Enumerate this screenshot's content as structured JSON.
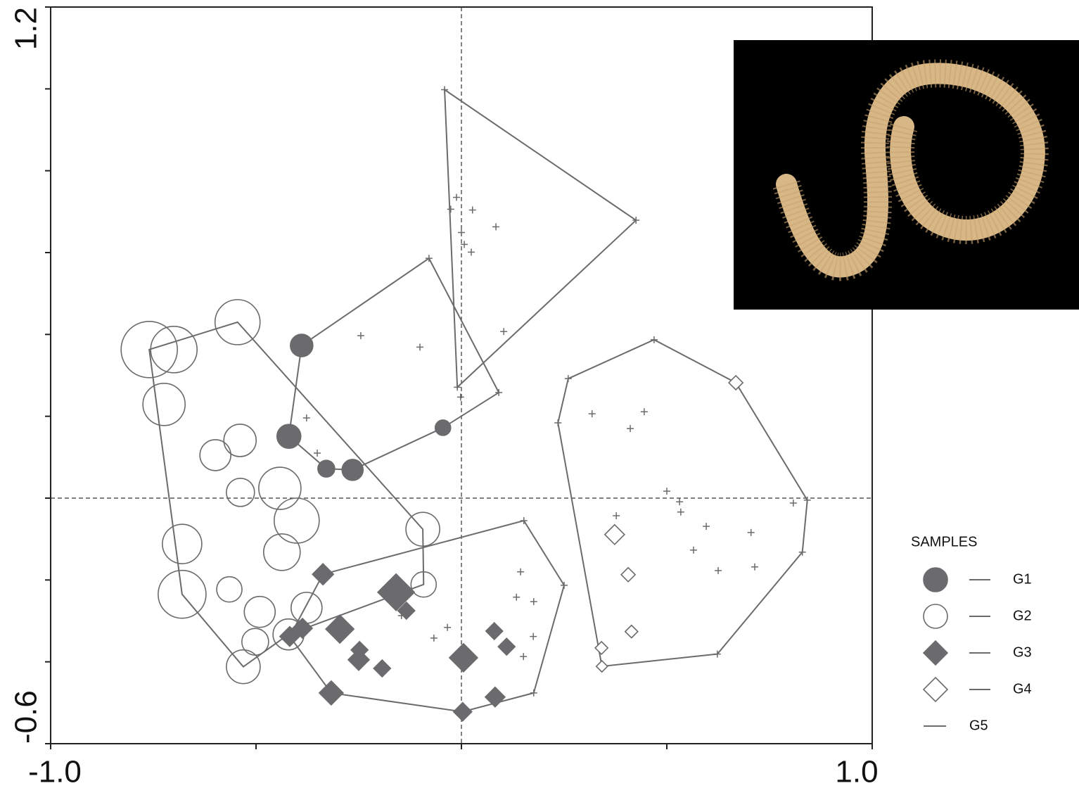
{
  "chart_data": {
    "type": "scatter",
    "xlim": [
      -1,
      1
    ],
    "ylim": [
      -0.6,
      1.2
    ],
    "xticks": [
      {
        "value": -1,
        "label": "-1.0"
      },
      {
        "value": -0.5,
        "label": null
      },
      {
        "value": 0,
        "label": null
      },
      {
        "value": 0.5,
        "label": null
      },
      {
        "value": 1,
        "label": "1.0"
      }
    ],
    "yticks": [
      -0.6,
      {
        "value": -0.4,
        "label": null
      },
      {
        "value": -0.2,
        "label": null
      },
      {
        "value": 0,
        "label": null
      },
      {
        "value": 0.2,
        "label": null
      },
      {
        "value": 0.4,
        "label": null
      },
      {
        "value": 0.6,
        "label": null
      },
      {
        "value": 0.8,
        "label": null
      },
      {
        "value": 1.0,
        "label": null
      },
      1.2
    ],
    "crosshair": {
      "x": 0,
      "y": 0
    },
    "legend_title": "SAMPLES",
    "series": [
      {
        "name": "G1",
        "marker": "circle",
        "filled": true,
        "color": "#6b6b6e",
        "x": [
          -0.389,
          -0.42,
          -0.045,
          -0.329,
          -0.265
        ],
        "y": [
          0.373,
          0.151,
          0.172,
          0.072,
          0.069
        ],
        "sizes": [
          16,
          17,
          11,
          12,
          15
        ]
      },
      {
        "name": "G2",
        "marker": "circle",
        "filled": false,
        "color": "#6b6b6e",
        "x": [
          -0.76,
          -0.7,
          -0.545,
          -0.724,
          -0.539,
          -0.599,
          -0.538,
          -0.442,
          -0.401,
          -0.68,
          -0.437,
          -0.094,
          -0.68,
          -0.565,
          -0.491,
          -0.377,
          -0.092,
          -0.502,
          -0.421,
          -0.531
        ],
        "y": [
          0.363,
          0.363,
          0.43,
          0.229,
          0.141,
          0.105,
          0.014,
          0.024,
          -0.055,
          -0.112,
          -0.132,
          -0.076,
          -0.235,
          -0.223,
          -0.278,
          -0.268,
          -0.211,
          -0.351,
          -0.333,
          -0.412
        ],
        "sizes": [
          40,
          33,
          32,
          30,
          23,
          22,
          20,
          30,
          32,
          28,
          26,
          24,
          34,
          18,
          22,
          22,
          18,
          19,
          22,
          24
        ]
      },
      {
        "name": "G3",
        "marker": "diamond",
        "filled": true,
        "color": "#6b6b6e",
        "x": [
          -0.337,
          -0.159,
          -0.134,
          -0.296,
          -0.387,
          -0.418,
          -0.248,
          -0.25,
          -0.193,
          0.005,
          0.08,
          0.11,
          -0.317,
          0.082,
          0.003
        ],
        "y": [
          -0.186,
          -0.23,
          -0.275,
          -0.32,
          -0.318,
          -0.338,
          -0.371,
          -0.395,
          -0.416,
          -0.39,
          -0.325,
          -0.363,
          -0.476,
          -0.486,
          -0.522
        ],
        "sizes": [
          15,
          26,
          12,
          20,
          14,
          14,
          12,
          15,
          12,
          20,
          12,
          12,
          17,
          14,
          13
        ]
      },
      {
        "name": "G4",
        "marker": "diamond",
        "filled": false,
        "color": "#6b6b6e",
        "x": [
          0.668,
          0.373,
          0.406,
          0.414,
          0.341,
          0.342
        ],
        "y": [
          0.282,
          -0.089,
          -0.187,
          -0.326,
          -0.366,
          -0.411
        ],
        "sizes": [
          10,
          14,
          10,
          9,
          9,
          8
        ]
      },
      {
        "marker": "plus",
        "color": "#6b6b6e",
        "x": [
          -0.041,
          0.425,
          -0.012,
          -0.026,
          0.027,
          0.084,
          0,
          0.007,
          0.024,
          -0.079,
          0.103,
          -0.245,
          -0.101,
          -0.01,
          0.091,
          -0.002,
          -0.377,
          -0.351,
          0.469,
          0.26,
          0.318,
          0.445,
          0.411,
          0.235,
          0.5,
          0.531,
          0.534,
          0.842,
          0.808,
          0.377,
          0.596,
          0.705,
          0.565,
          0.83,
          0.714,
          0.625,
          0.152,
          0.25,
          0.144,
          0.134,
          0.176,
          -0.146,
          -0.034,
          -0.067,
          0.175,
          0.151,
          0.176,
          0.623
        ],
        "y": [
          0.998,
          0.679,
          0.735,
          0.706,
          0.704,
          0.663,
          0.649,
          0.62,
          0.601,
          0.586,
          0.407,
          0.397,
          0.369,
          0.271,
          0.258,
          0.247,
          0.196,
          0.11,
          0.387,
          0.292,
          0.206,
          0.211,
          0.17,
          0.184,
          0.017,
          -0.009,
          -0.034,
          -0.005,
          -0.012,
          -0.043,
          -0.069,
          -0.084,
          -0.127,
          -0.132,
          -0.168,
          -0.177,
          -0.055,
          -0.213,
          -0.18,
          -0.242,
          -0.253,
          -0.287,
          -0.316,
          -0.342,
          -0.338,
          -0.387,
          -0.476,
          -0.381
        ]
      },
      {
        "name": "G5",
        "marker": "polygon",
        "color": "#6b6b6e",
        "polygons": [
          {
            "x": [
              -0.041,
              0.425,
              -0.01
            ],
            "y": [
              0.998,
              0.679,
              0.271
            ]
          },
          {
            "x": [
              -0.389,
              -0.079,
              0.091,
              -0.045,
              -0.265,
              -0.329,
              -0.42
            ],
            "y": [
              0.373,
              0.586,
              0.258,
              0.172,
              0.069,
              0.072,
              0.151
            ]
          },
          {
            "x": [
              -0.76,
              -0.545,
              -0.094,
              -0.092,
              -0.421,
              -0.531,
              -0.68
            ],
            "y": [
              0.363,
              0.43,
              -0.076,
              -0.211,
              -0.333,
              -0.412,
              -0.235
            ]
          },
          {
            "x": [
              -0.337,
              0.152,
              0.25,
              0.176,
              0.003,
              -0.317,
              -0.418
            ],
            "y": [
              -0.186,
              -0.055,
              -0.213,
              -0.476,
              -0.522,
              -0.476,
              -0.338
            ]
          },
          {
            "x": [
              0.26,
              0.469,
              0.668,
              0.842,
              0.83,
              0.623,
              0.342,
              0.235
            ],
            "y": [
              0.292,
              0.387,
              0.282,
              -0.005,
              -0.132,
              -0.381,
              -0.411,
              0.184
            ]
          }
        ]
      }
    ]
  }
}
